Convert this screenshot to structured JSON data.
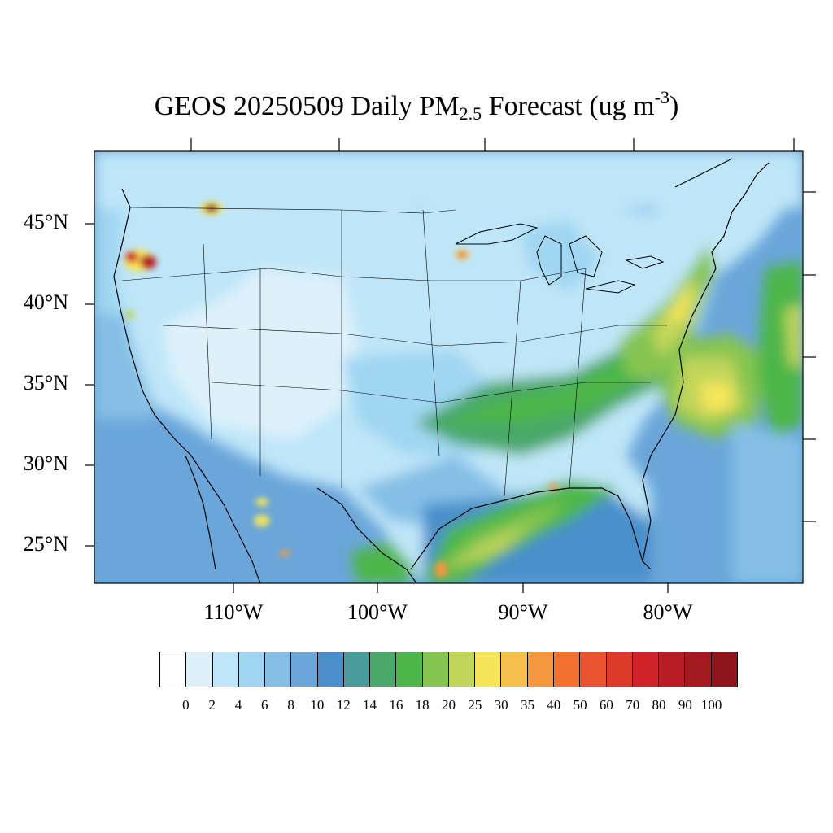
{
  "title": {
    "prefix": "GEOS 20250509 Daily PM",
    "subscript": "2.5",
    "middle": " Forecast (ug m",
    "superscript": "-3",
    "suffix": ")"
  },
  "latitude_labels": [
    "45°N",
    "40°N",
    "35°N",
    "30°N",
    "25°N"
  ],
  "longitude_labels": [
    "110°W",
    "100°W",
    "90°W",
    "80°W"
  ],
  "colorbar": {
    "levels": [
      "0",
      "2",
      "4",
      "6",
      "8",
      "10",
      "12",
      "14",
      "16",
      "18",
      "20",
      "25",
      "30",
      "35",
      "40",
      "50",
      "60",
      "70",
      "80",
      "90",
      "100"
    ],
    "colors": [
      "#ffffff",
      "#def1fb",
      "#bfe6f8",
      "#a0d6f2",
      "#85bfe6",
      "#6aa6da",
      "#4a8fcb",
      "#4a9b9b",
      "#4aa86a",
      "#4db64a",
      "#86c451",
      "#c1d55a",
      "#f6e55a",
      "#f7bf4d",
      "#f6983f",
      "#f3722f",
      "#e9532d",
      "#de3a2a",
      "#d0232a",
      "#b81c24",
      "#a41a21",
      "#8e151b"
    ]
  },
  "colors": {
    "ocean": "#6aa6da",
    "land_base": "#bfe6f8",
    "map_border": "#000000"
  }
}
